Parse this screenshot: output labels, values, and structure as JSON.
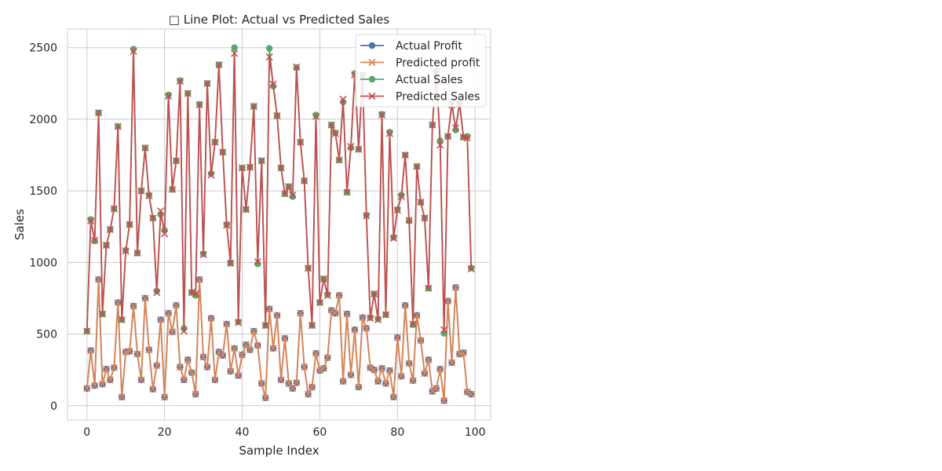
{
  "chart_data": {
    "type": "line",
    "title": "□ Line Plot: Actual vs Predicted Sales",
    "xlabel": "Sample Index",
    "ylabel": "Sales",
    "xlim": [
      -5,
      104
    ],
    "ylim": [
      -100,
      2630
    ],
    "xticks": [
      0,
      20,
      40,
      60,
      80,
      100
    ],
    "yticks": [
      0,
      500,
      1000,
      1500,
      2000,
      2500
    ],
    "grid": true,
    "legend_position": "top-right",
    "series": [
      {
        "name": "Actual Profit",
        "marker": "circle",
        "color": "#4c72b0",
        "values": [
          120,
          385,
          140,
          880,
          150,
          255,
          180,
          265,
          720,
          60,
          375,
          380,
          695,
          360,
          180,
          750,
          390,
          115,
          280,
          600,
          60,
          645,
          515,
          700,
          270,
          180,
          320,
          230,
          80,
          880,
          340,
          270,
          610,
          180,
          375,
          350,
          570,
          240,
          400,
          210,
          355,
          425,
          390,
          520,
          420,
          155,
          55,
          675,
          400,
          630,
          180,
          470,
          155,
          120,
          160,
          645,
          270,
          80,
          130,
          365,
          245,
          260,
          335,
          665,
          645,
          770,
          170,
          640,
          215,
          530,
          130,
          615,
          540,
          265,
          250,
          170,
          260,
          155,
          245,
          60,
          475,
          205,
          700,
          295,
          175,
          630,
          455,
          225,
          320,
          100,
          120,
          255,
          35,
          730,
          300,
          825,
          360,
          370,
          95,
          80
        ]
      },
      {
        "name": "Predicted profit",
        "marker": "x",
        "color": "#dd8452",
        "values": [
          120,
          385,
          140,
          880,
          150,
          255,
          180,
          265,
          720,
          60,
          375,
          380,
          695,
          360,
          180,
          750,
          390,
          115,
          280,
          600,
          60,
          645,
          515,
          700,
          270,
          180,
          320,
          230,
          80,
          880,
          340,
          270,
          610,
          180,
          375,
          350,
          570,
          240,
          400,
          210,
          355,
          425,
          390,
          520,
          420,
          155,
          55,
          675,
          400,
          630,
          180,
          470,
          155,
          120,
          160,
          645,
          270,
          80,
          130,
          365,
          245,
          260,
          335,
          665,
          645,
          770,
          170,
          640,
          215,
          530,
          130,
          615,
          540,
          265,
          250,
          170,
          260,
          155,
          245,
          60,
          475,
          205,
          700,
          295,
          175,
          630,
          455,
          225,
          320,
          100,
          120,
          255,
          35,
          730,
          300,
          825,
          360,
          370,
          95,
          80
        ]
      },
      {
        "name": "Actual Sales",
        "marker": "circle",
        "color": "#55a868",
        "values": [
          520,
          1300,
          1150,
          2045,
          640,
          1120,
          1230,
          1375,
          1950,
          600,
          1085,
          1265,
          2490,
          1065,
          1500,
          1800,
          1470,
          1310,
          800,
          1335,
          1225,
          2170,
          1510,
          1710,
          2270,
          540,
          2180,
          790,
          770,
          2105,
          1060,
          2250,
          1620,
          1840,
          2380,
          1770,
          1265,
          995,
          2500,
          585,
          1660,
          1370,
          1665,
          2090,
          990,
          1710,
          560,
          2495,
          2230,
          2025,
          1660,
          1480,
          1530,
          1460,
          2360,
          1840,
          1570,
          960,
          560,
          2030,
          720,
          885,
          775,
          1960,
          1905,
          1715,
          2120,
          1490,
          1800,
          2320,
          1790,
          2310,
          1330,
          615,
          780,
          605,
          2035,
          635,
          1910,
          1175,
          1370,
          1470,
          1750,
          1290,
          565,
          1670,
          1420,
          1310,
          820,
          1960,
          2340,
          1850,
          505,
          1880,
          2120,
          1925,
          2115,
          1875,
          1880,
          960
        ]
      },
      {
        "name": "Predicted Sales",
        "marker": "x",
        "color": "#c44e52",
        "values": [
          520,
          1290,
          1155,
          2045,
          640,
          1120,
          1230,
          1375,
          1950,
          600,
          1080,
          1265,
          2475,
          1065,
          1500,
          1800,
          1465,
          1310,
          790,
          1360,
          1200,
          2160,
          1510,
          1710,
          2265,
          520,
          2180,
          790,
          780,
          2100,
          1055,
          2250,
          1610,
          1840,
          2380,
          1770,
          1260,
          995,
          2460,
          580,
          1660,
          1370,
          1665,
          2090,
          1005,
          1710,
          560,
          2435,
          2245,
          2025,
          1660,
          1480,
          1530,
          1470,
          2365,
          1840,
          1570,
          960,
          560,
          2020,
          720,
          885,
          770,
          1960,
          1900,
          1715,
          2140,
          1490,
          1810,
          2310,
          1790,
          2300,
          1325,
          610,
          780,
          600,
          2030,
          635,
          1900,
          1170,
          1365,
          1460,
          1750,
          1295,
          570,
          1670,
          1420,
          1310,
          820,
          1960,
          2330,
          1820,
          530,
          1880,
          2100,
          1940,
          2110,
          1875,
          1870,
          955
        ]
      }
    ]
  }
}
